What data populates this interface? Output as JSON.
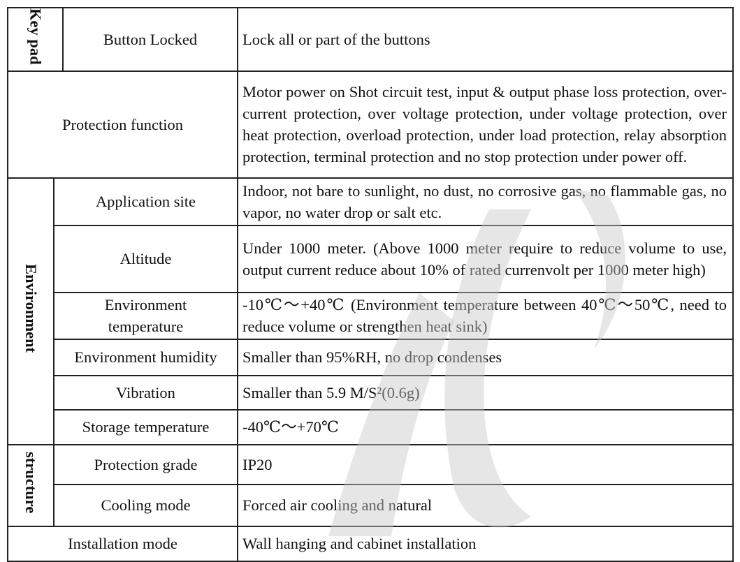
{
  "rows": {
    "keypad": {
      "group": "Key pad",
      "label": "Button Locked",
      "value": "Lock all or part of the buttons"
    },
    "protection": {
      "label": "Protection function",
      "value": "Motor power on Shot circuit test, input & output phase loss protection, over-current protection, over voltage protection, under voltage protection, over heat protection, overload protection, under load protection, relay absorption protection, terminal protection and no stop protection under power off."
    },
    "environment": {
      "group": "Environment",
      "items": [
        {
          "label": "Application site",
          "value": "Indoor, not bare to sunlight, no dust, no corrosive gas, no flammable gas, no vapor, no water drop or salt etc."
        },
        {
          "label": "Altitude",
          "value": "Under 1000 meter. (Above 1000 meter require to reduce volume to use, output current reduce about 10% of rated currenvolt per 1000 meter high)"
        },
        {
          "label": "Environment temperature",
          "value": "-10℃～+40℃ (Environment temperature between 40℃～50℃, need to reduce volume or strengthen heat sink)"
        },
        {
          "label": "Environment humidity",
          "value": "Smaller than 95%RH, no drop condenses"
        },
        {
          "label": "Vibration",
          "value": "Smaller than 5.9 M/S²(0.6g)"
        },
        {
          "label": "Storage temperature",
          "value": "-40℃～+70℃"
        }
      ]
    },
    "structure": {
      "group": "structure",
      "items": [
        {
          "label": "Protection grade",
          "value": "IP20"
        },
        {
          "label": "Cooling mode",
          "value": "Forced air cooling and natural"
        }
      ]
    },
    "installation": {
      "label": "Installation mode",
      "value": "Wall hanging and cabinet installation"
    }
  },
  "colors": {
    "border": "#222222",
    "watermark": "#d8d8d8"
  }
}
